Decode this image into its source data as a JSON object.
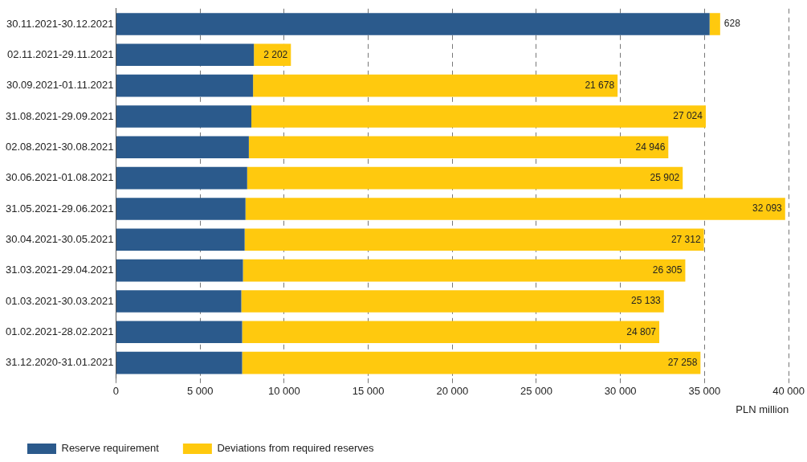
{
  "chart_data": {
    "type": "bar",
    "orientation": "horizontal",
    "stacked": true,
    "xlabel": "PLN million",
    "categories": [
      "30.11.2021-30.12.2021",
      "02.11.2021-29.11.2021",
      "30.09.2021-01.11.2021",
      "31.08.2021-29.09.2021",
      "02.08.2021-30.08.2021",
      "30.06.2021-01.08.2021",
      "31.05.2021-29.06.2021",
      "30.04.2021-30.05.2021",
      "31.03.2021-29.04.2021",
      "01.03.2021-30.03.2021",
      "01.02.2021-28.02.2021",
      "31.12.2020-31.01.2021"
    ],
    "series": [
      {
        "name": "Reserve requirement",
        "color": "#2b5a8c",
        "values": [
          35300,
          8200,
          8150,
          8050,
          7900,
          7800,
          7700,
          7650,
          7550,
          7450,
          7500,
          7500
        ]
      },
      {
        "name": "Deviations from required reserves",
        "color": "#ffc90e",
        "values": [
          628,
          2202,
          21678,
          27024,
          24946,
          25902,
          32093,
          27312,
          26305,
          25133,
          24807,
          27258
        ],
        "value_labels": [
          "628",
          "2 202",
          "21 678",
          "27 024",
          "24 946",
          "25 902",
          "32 093",
          "27 312",
          "26 305",
          "25 133",
          "24 807",
          "27 258"
        ]
      }
    ],
    "xlim": [
      0,
      40000
    ],
    "xticks": [
      0,
      {
        "value": 5000,
        "label": "5 000"
      },
      {
        "value": 10000,
        "label": "10 000"
      },
      {
        "value": 15000,
        "label": "15 000"
      },
      {
        "value": 20000,
        "label": "20 000"
      },
      {
        "value": 25000,
        "label": "25 000"
      },
      {
        "value": 30000,
        "label": "30 000"
      },
      {
        "value": 35000,
        "label": "35 000"
      },
      {
        "value": 40000,
        "label": "40 000"
      }
    ],
    "grid": "x",
    "legend": "bottom"
  }
}
